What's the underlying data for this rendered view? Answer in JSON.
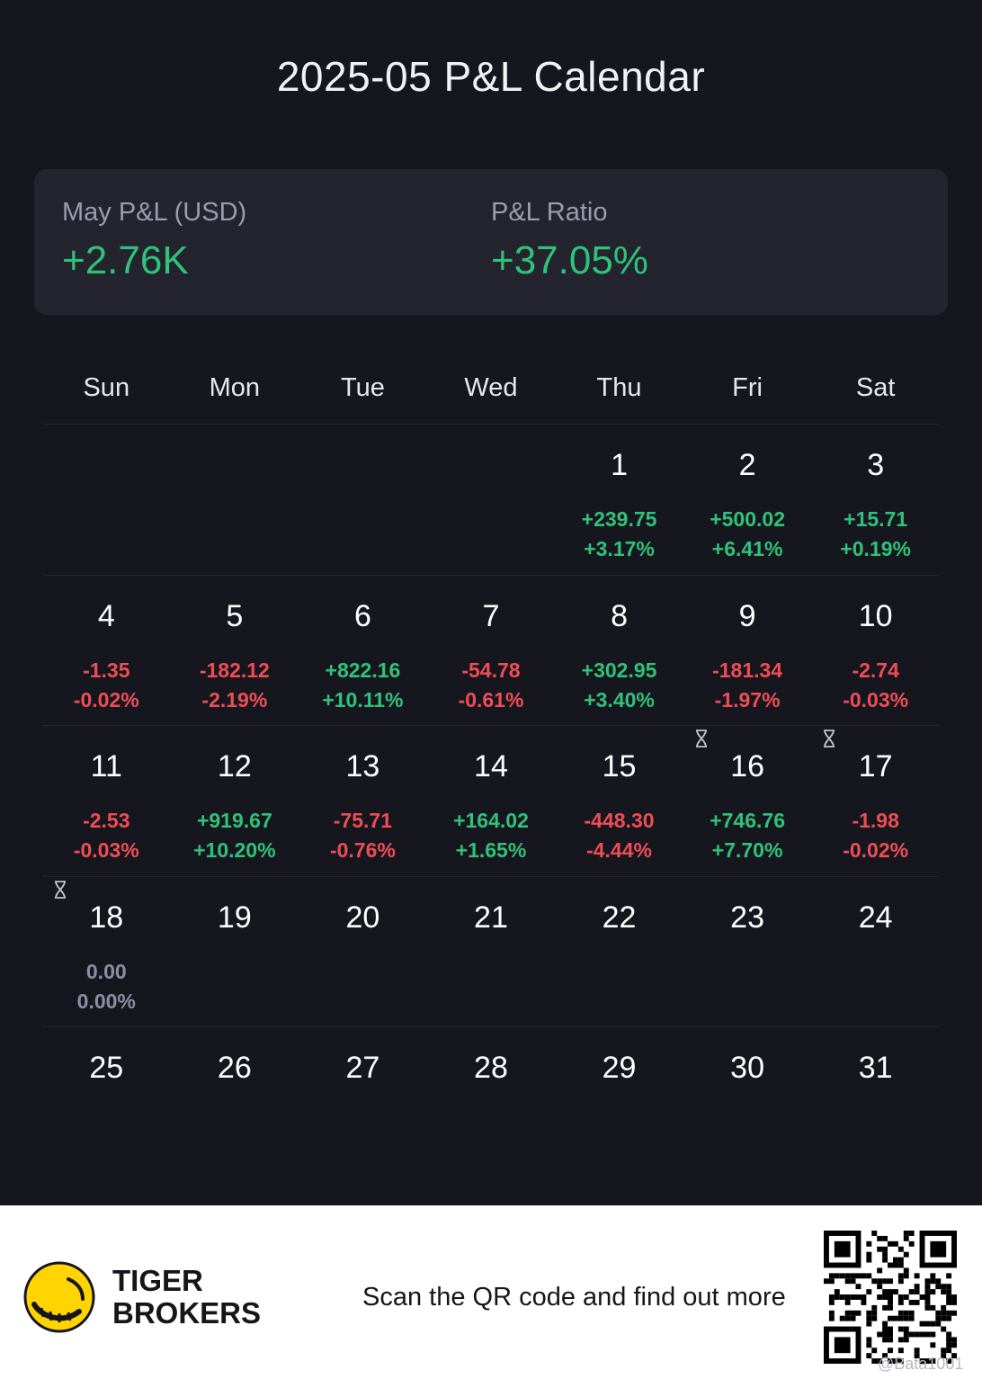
{
  "title": "2025-05 P&L Calendar",
  "summary": {
    "month_label": "May P&L (USD)",
    "month_value": "+2.76K",
    "ratio_label": "P&L Ratio",
    "ratio_value": "+37.05%"
  },
  "weekdays": [
    "Sun",
    "Mon",
    "Tue",
    "Wed",
    "Thu",
    "Fri",
    "Sat"
  ],
  "weeks": [
    [
      null,
      null,
      null,
      null,
      {
        "day": "1",
        "pnl": "+239.75",
        "pct": "+3.17%",
        "sign": "pos"
      },
      {
        "day": "2",
        "pnl": "+500.02",
        "pct": "+6.41%",
        "sign": "pos"
      },
      {
        "day": "3",
        "pnl": "+15.71",
        "pct": "+0.19%",
        "sign": "pos"
      }
    ],
    [
      {
        "day": "4",
        "pnl": "-1.35",
        "pct": "-0.02%",
        "sign": "neg"
      },
      {
        "day": "5",
        "pnl": "-182.12",
        "pct": "-2.19%",
        "sign": "neg"
      },
      {
        "day": "6",
        "pnl": "+822.16",
        "pct": "+10.11%",
        "sign": "pos"
      },
      {
        "day": "7",
        "pnl": "-54.78",
        "pct": "-0.61%",
        "sign": "neg"
      },
      {
        "day": "8",
        "pnl": "+302.95",
        "pct": "+3.40%",
        "sign": "pos"
      },
      {
        "day": "9",
        "pnl": "-181.34",
        "pct": "-1.97%",
        "sign": "neg"
      },
      {
        "day": "10",
        "pnl": "-2.74",
        "pct": "-0.03%",
        "sign": "neg"
      }
    ],
    [
      {
        "day": "11",
        "pnl": "-2.53",
        "pct": "-0.03%",
        "sign": "neg"
      },
      {
        "day": "12",
        "pnl": "+919.67",
        "pct": "+10.20%",
        "sign": "pos"
      },
      {
        "day": "13",
        "pnl": "-75.71",
        "pct": "-0.76%",
        "sign": "neg"
      },
      {
        "day": "14",
        "pnl": "+164.02",
        "pct": "+1.65%",
        "sign": "pos"
      },
      {
        "day": "15",
        "pnl": "-448.30",
        "pct": "-4.44%",
        "sign": "neg"
      },
      {
        "day": "16",
        "pnl": "+746.76",
        "pct": "+7.70%",
        "sign": "pos",
        "pending": true
      },
      {
        "day": "17",
        "pnl": "-1.98",
        "pct": "-0.02%",
        "sign": "neg",
        "pending": true
      }
    ],
    [
      {
        "day": "18",
        "pnl": "0.00",
        "pct": "0.00%",
        "sign": "zero",
        "pending": true
      },
      {
        "day": "19"
      },
      {
        "day": "20"
      },
      {
        "day": "21"
      },
      {
        "day": "22"
      },
      {
        "day": "23"
      },
      {
        "day": "24"
      }
    ],
    [
      {
        "day": "25"
      },
      {
        "day": "26"
      },
      {
        "day": "27"
      },
      {
        "day": "28"
      },
      {
        "day": "29"
      },
      {
        "day": "30"
      },
      {
        "day": "31"
      }
    ]
  ],
  "footer": {
    "brand_line1": "TIGER",
    "brand_line2": "BROKERS",
    "cta": "Scan the QR code and find out more",
    "watermark": "@Bata1001",
    "logo_icon": "tiger-logo-icon",
    "qr_icon": "qr-code-icon"
  },
  "colors": {
    "background": "#16171e",
    "card": "#23242d",
    "positive": "#2fc27a",
    "negative": "#ef4d55",
    "neutral": "#8c8fa3"
  }
}
